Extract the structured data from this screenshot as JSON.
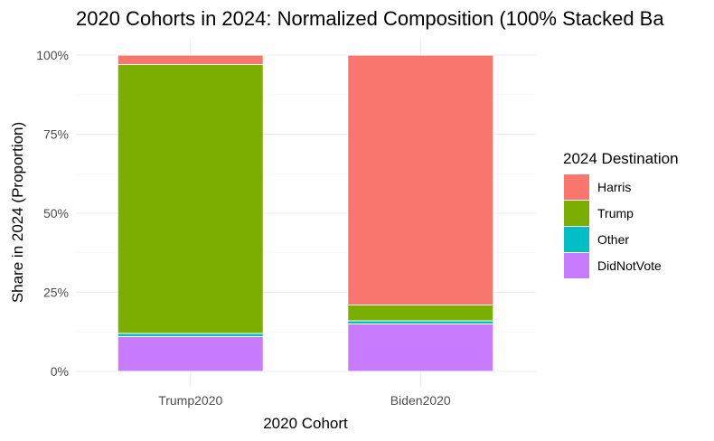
{
  "chart_data": {
    "type": "bar",
    "stacked": true,
    "normalized": true,
    "title": "2020 Cohorts in 2024: Normalized Composition (100% Stacked Ba",
    "xlabel": "2020 Cohort",
    "ylabel": "Share in 2024 (Proportion)",
    "categories": [
      "Trump2020",
      "Biden2020"
    ],
    "ylim": [
      0,
      1
    ],
    "yticks": [
      {
        "value": 0,
        "label": "0%"
      },
      {
        "value": 0.25,
        "label": "25%"
      },
      {
        "value": 0.5,
        "label": "50%"
      },
      {
        "value": 0.75,
        "label": "75%"
      },
      {
        "value": 1,
        "label": "100%"
      }
    ],
    "series": [
      {
        "name": "DidNotVote",
        "color": "#C77CFF",
        "values": [
          0.11,
          0.15
        ]
      },
      {
        "name": "Other",
        "color": "#00BFC4",
        "values": [
          0.01,
          0.01
        ]
      },
      {
        "name": "Trump",
        "color": "#7CAE00",
        "values": [
          0.85,
          0.05
        ]
      },
      {
        "name": "Harris",
        "color": "#F8766D",
        "values": [
          0.03,
          0.79
        ]
      }
    ],
    "legend": {
      "title": "2024 Destination",
      "position": "right",
      "order": [
        "Harris",
        "Trump",
        "Other",
        "DidNotVote"
      ]
    },
    "grid": true
  }
}
